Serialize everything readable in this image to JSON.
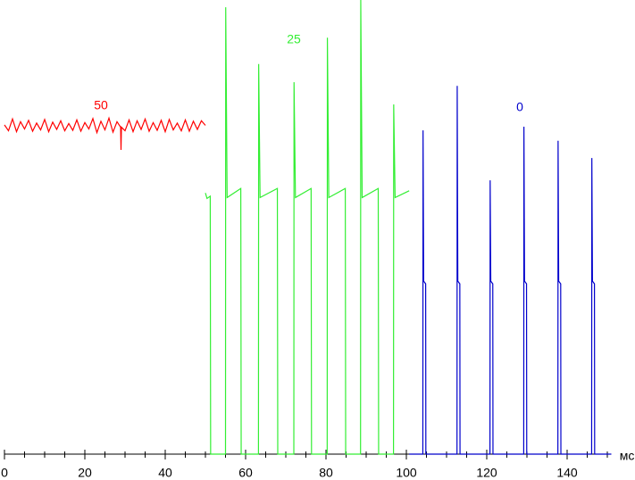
{
  "chart_data": {
    "type": "line",
    "xlabel": "мс",
    "xlim": [
      0,
      151
    ],
    "ylim": [
      0,
      100
    ],
    "xticks": [
      0,
      20,
      40,
      60,
      80,
      100,
      120,
      140
    ],
    "xminorticks": [
      5,
      10,
      15,
      25,
      30,
      35,
      45,
      50,
      55,
      65,
      70,
      75,
      85,
      90,
      95,
      105,
      110,
      115,
      125,
      130,
      135,
      145,
      150
    ],
    "series": [
      {
        "name": "50",
        "color": "#ff0000",
        "x": [
          0,
          1,
          2,
          3,
          4,
          5,
          6,
          7,
          8,
          9,
          10,
          11,
          12,
          13,
          14,
          15,
          16,
          17,
          18,
          19,
          20,
          21,
          22,
          23,
          24,
          25,
          26,
          27,
          28,
          28.9,
          29,
          29.1,
          30,
          31,
          32,
          33,
          34,
          35,
          36,
          37,
          38,
          39,
          40,
          41,
          42,
          43,
          44,
          45,
          46,
          47,
          48,
          49,
          50
        ],
        "values": [
          72.5,
          71.2,
          73.8,
          71.0,
          73.2,
          71.6,
          73.5,
          71.1,
          72.9,
          71.4,
          73.7,
          71.0,
          73.1,
          71.5,
          73.4,
          71.2,
          72.8,
          71.3,
          73.6,
          71.1,
          73.0,
          71.6,
          73.9,
          70.8,
          73.3,
          71.4,
          74.0,
          70.9,
          73.2,
          72.0,
          67.0,
          72.0,
          71.2,
          73.6,
          71.0,
          73.4,
          71.5,
          73.8,
          71.1,
          73.0,
          71.3,
          73.5,
          71.0,
          73.7,
          71.4,
          72.9,
          71.2,
          73.6,
          71.1,
          73.3,
          71.5,
          73.4,
          72.4
        ]
      },
      {
        "name": "25",
        "color": "#33ee33",
        "x": [
          50,
          50.4,
          51.2,
          51.3,
          55.0,
          55.05,
          55.4,
          58.8,
          58.9,
          63.2,
          63.25,
          63.6,
          67.9,
          68.0,
          72.0,
          72.05,
          72.4,
          76.3,
          76.4,
          80.3,
          80.35,
          80.7,
          84.8,
          84.9,
          88.6,
          88.65,
          89.0,
          93.0,
          93.1,
          96.8,
          96.85,
          97.2,
          100.7
        ],
        "values": [
          57.5,
          56.3,
          56.8,
          0,
          0,
          98.4,
          56.5,
          58.5,
          0,
          0,
          85.9,
          56.5,
          58.5,
          0,
          0,
          81.9,
          56.5,
          58.5,
          0,
          0,
          91.7,
          56.5,
          58.5,
          0,
          0,
          100,
          56.5,
          58.5,
          0,
          0,
          77,
          56.5,
          58
        ]
      },
      {
        "name": "0",
        "color": "#0000cc",
        "x": [
          100.7,
          104.1,
          104.15,
          104.3,
          104.8,
          104.85,
          112.6,
          112.65,
          112.8,
          113.3,
          113.35,
          120.8,
          120.85,
          121.0,
          121.5,
          121.55,
          129.2,
          129.25,
          129.4,
          129.9,
          129.95,
          137.7,
          137.75,
          137.9,
          138.4,
          138.45,
          146.1,
          146.15,
          146.3,
          146.8,
          146.85,
          151
        ],
        "values": [
          0,
          0,
          71.3,
          38.1,
          37.5,
          0,
          0,
          81.1,
          38.1,
          37.5,
          0,
          0,
          60.3,
          38.1,
          37.5,
          0,
          0,
          72.1,
          38.1,
          37.5,
          0,
          0,
          69,
          38.1,
          37.5,
          0,
          0,
          65.2,
          38.1,
          37.5,
          0,
          0
        ]
      }
    ]
  }
}
